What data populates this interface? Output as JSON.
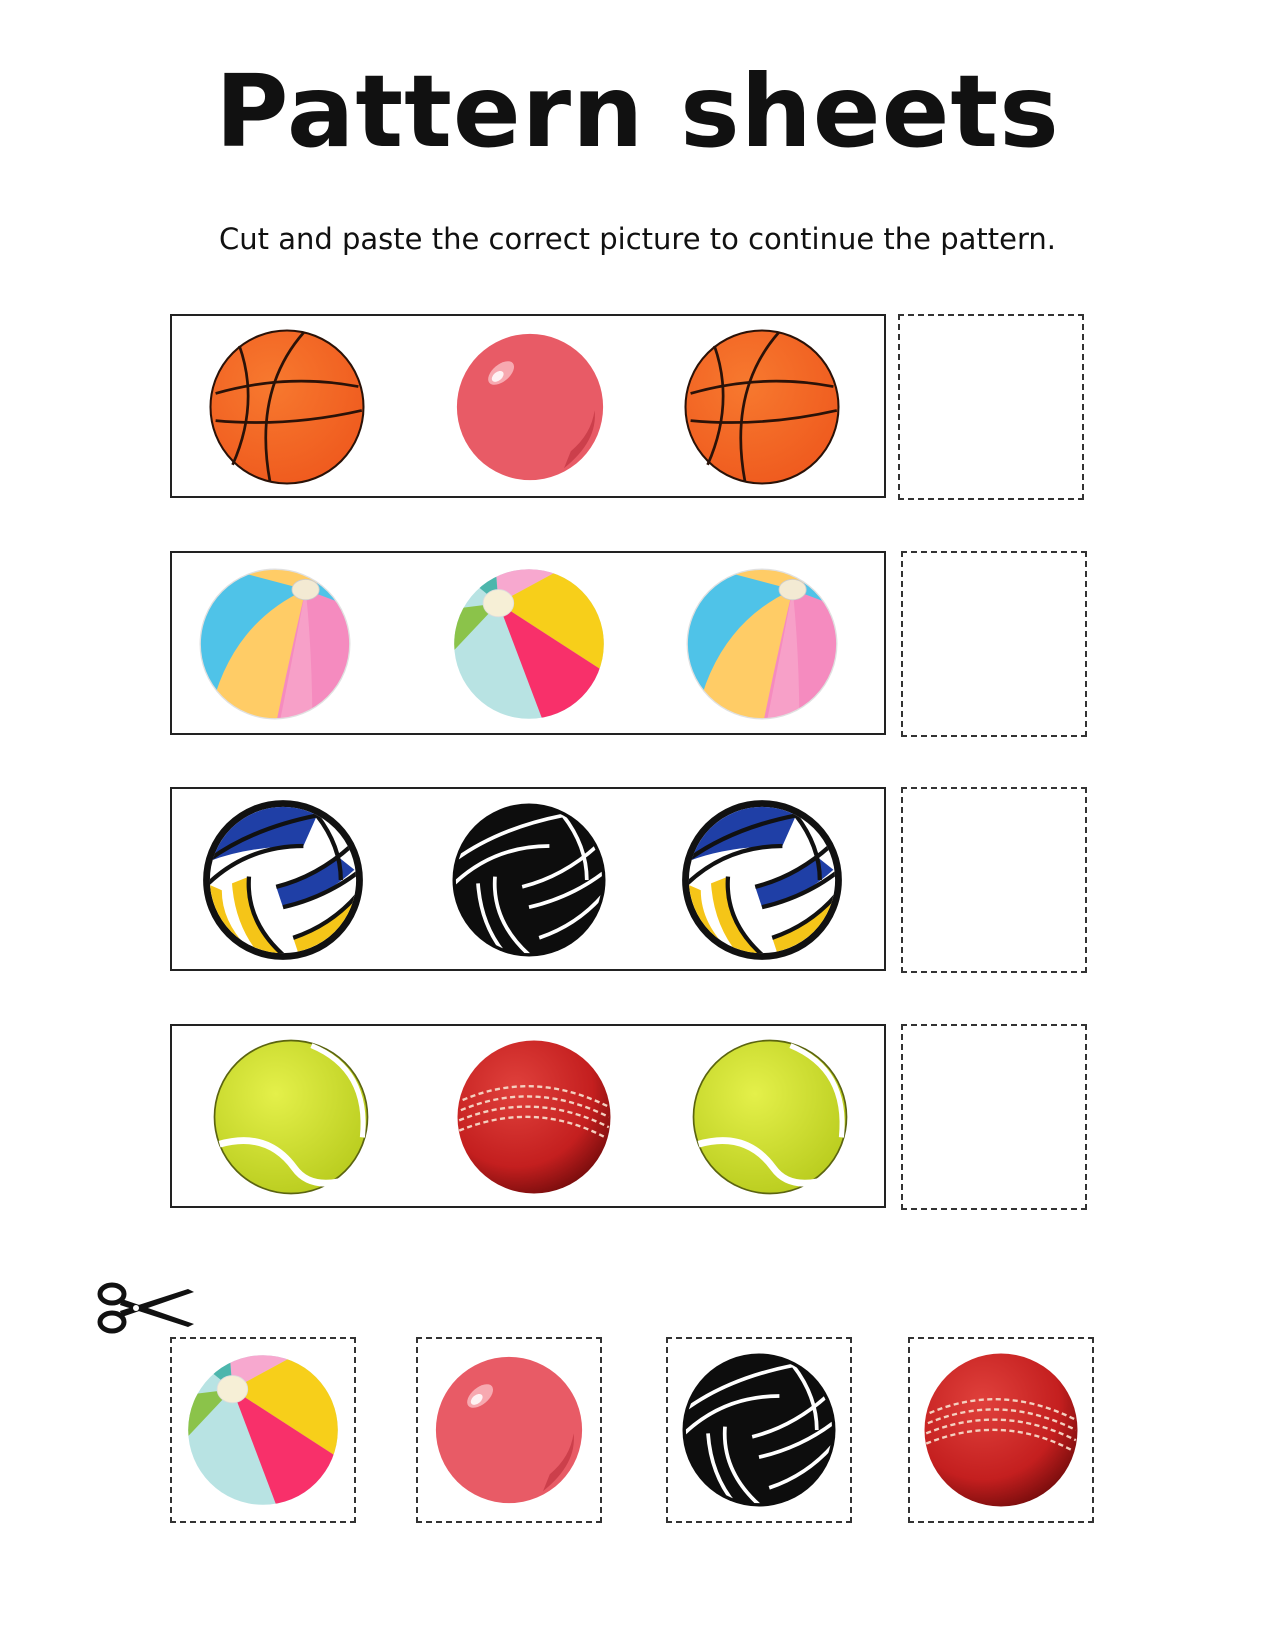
{
  "title": "Pattern sheets",
  "instruction": "Cut and paste the correct picture to continue the pattern.",
  "icons": {
    "basketball": "basketball-icon",
    "pink_ball": "pink-ball-icon",
    "beach_ball_a": "beach-ball-icon",
    "beach_ball_b": "beach-ball-alt-icon",
    "volleyball": "volleyball-icon",
    "black_volleyball": "black-volleyball-icon",
    "tennis_ball": "tennis-ball-icon",
    "cricket_ball": "cricket-ball-icon",
    "scissors": "scissors-icon"
  },
  "patterns": [
    [
      "basketball",
      "pink_ball",
      "basketball"
    ],
    [
      "beach_ball_a",
      "beach_ball_b",
      "beach_ball_a"
    ],
    [
      "volleyball",
      "black_volleyball",
      "volleyball"
    ],
    [
      "tennis_ball",
      "cricket_ball",
      "tennis_ball"
    ]
  ],
  "cutouts": [
    "beach_ball_b",
    "pink_ball",
    "black_volleyball",
    "cricket_ball"
  ],
  "colors": {
    "basketball": "#ef5a1e",
    "pink_ball": "#e85b66",
    "tennis_ball": "#d4e633",
    "cricket_ball": "#c41f1f",
    "volleyball_blue": "#1f3fa6",
    "volleyball_yellow": "#f5c518"
  }
}
